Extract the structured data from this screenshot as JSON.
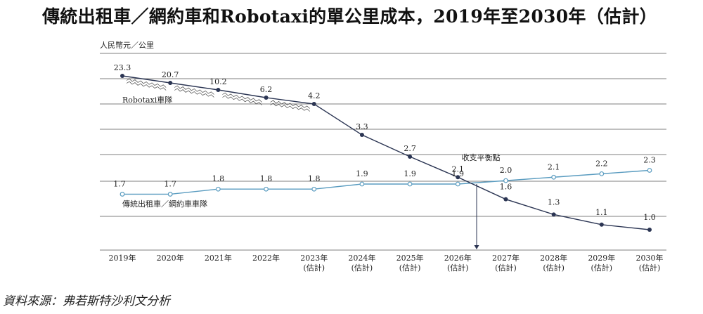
{
  "title": "傳統出租車／網約車和Robotaxi的單公里成本，2019年至2030年（估計）",
  "source": "資料來源：弗若斯特沙利文分析",
  "chart_data": {
    "type": "line",
    "title": "傳統出租車／網約車和Robotaxi的單公里成本，2019年至2030年（估計）",
    "ylabel": "人民幣元／公里",
    "ylim": [
      0,
      25
    ],
    "categories": [
      [
        "2019年",
        ""
      ],
      [
        "2020年",
        ""
      ],
      [
        "2021年",
        ""
      ],
      [
        "2022年",
        ""
      ],
      [
        "2023年",
        "(估計)"
      ],
      [
        "2024年",
        "(估計)"
      ],
      [
        "2025年",
        "(估計)"
      ],
      [
        "2026年",
        "(估計)"
      ],
      [
        "2027年",
        "(估計)"
      ],
      [
        "2028年",
        "(估計)"
      ],
      [
        "2029年",
        "(估計)"
      ],
      [
        "2030年",
        "(估計)"
      ]
    ],
    "series": [
      {
        "name": "Robotaxi車隊",
        "color": "#2b3553",
        "labels": [
          "23.3",
          "20.7",
          "10.2",
          "6.2",
          "4.2",
          "3.3",
          "2.7",
          "2.1",
          "1.6",
          "1.3",
          "1.1",
          "1.0"
        ]
      },
      {
        "name": "傳統出租車／網約車車隊",
        "color": "#5a9cc0",
        "values": [
          1.7,
          1.7,
          1.8,
          1.8,
          1.8,
          1.9,
          1.9,
          1.9,
          2.0,
          2.1,
          2.2,
          2.3
        ],
        "labels": [
          "1.7",
          "1.7",
          "1.8",
          "1.8",
          "1.8",
          "1.9",
          "1.9",
          "1.9",
          "2.0",
          "2.1",
          "2.2",
          "2.3"
        ]
      }
    ],
    "annotation": "收支平衡點"
  }
}
